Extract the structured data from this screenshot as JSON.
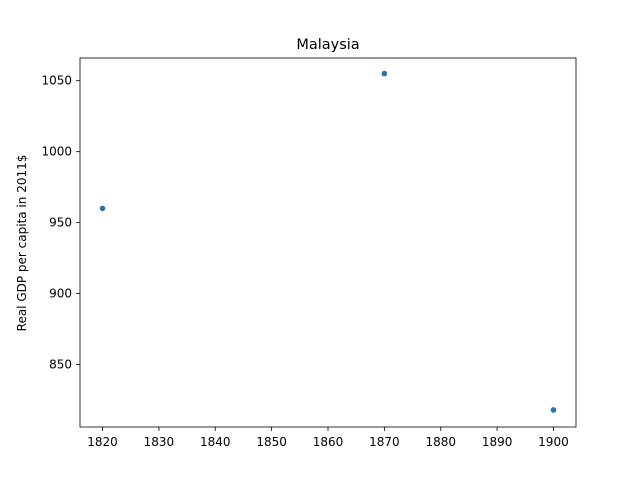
{
  "chart_data": {
    "type": "scatter",
    "title": "Malaysia",
    "xlabel": "",
    "ylabel": "Real GDP per capita in 2011$",
    "xlim": [
      1816,
      1904
    ],
    "ylim": [
      806,
      1066
    ],
    "x_ticks": [
      1820,
      1830,
      1840,
      1850,
      1860,
      1870,
      1880,
      1890,
      1900
    ],
    "y_ticks": [
      850,
      900,
      950,
      1000,
      1050
    ],
    "grid": false,
    "legend": "none",
    "series": [
      {
        "color": "#1f77b4",
        "points": [
          {
            "x": 1820,
            "y": 960
          },
          {
            "x": 1870,
            "y": 1055
          },
          {
            "x": 1900,
            "y": 818
          }
        ]
      }
    ]
  }
}
